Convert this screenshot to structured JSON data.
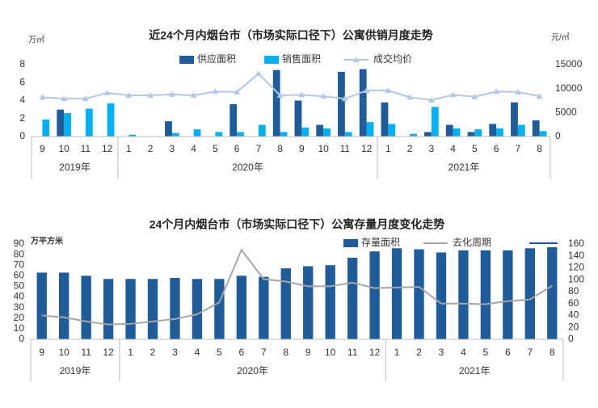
{
  "chart_data": [
    {
      "type": "bar",
      "title": "近24个月内烟台市（市场实际口径下）公寓供销月度走势",
      "y_label": "万㎡",
      "y2_label": "元/㎡",
      "categories": [
        "9",
        "10",
        "11",
        "12",
        "1",
        "2",
        "3",
        "4",
        "5",
        "6",
        "7",
        "8",
        "9",
        "10",
        "11",
        "12",
        "1",
        "2",
        "3",
        "4",
        "5",
        "6",
        "7",
        "8"
      ],
      "groups": [
        "2019年",
        "2020年",
        "2021年"
      ],
      "ylim": [
        0,
        8
      ],
      "yticks": [
        0,
        2,
        4,
        6,
        8
      ],
      "y2lim": [
        0,
        15000
      ],
      "y2ticks": [
        0,
        5000,
        10000,
        15000
      ],
      "grid": false,
      "legend": "top",
      "series": [
        {
          "name": "供应面积",
          "type": "bar",
          "color": "#1f5c99",
          "values": [
            0,
            3.0,
            0,
            0,
            0,
            0,
            1.7,
            0,
            0,
            3.6,
            0,
            7.4,
            4.0,
            1.3,
            7.2,
            7.5,
            3.8,
            0,
            0.5,
            1.3,
            0.5,
            1.4,
            3.8,
            1.8
          ]
        },
        {
          "name": "销售面积",
          "type": "bar",
          "color": "#00b0f0",
          "values": [
            1.9,
            2.6,
            3.1,
            3.7,
            0.2,
            0,
            0.4,
            0.8,
            0.5,
            0.5,
            1.3,
            0.5,
            1.0,
            0.9,
            0.5,
            1.6,
            1.4,
            0.3,
            3.3,
            0.9,
            0.8,
            0.9,
            1.3,
            0.6
          ]
        },
        {
          "name": "成交均价",
          "type": "line",
          "axis": "y2",
          "color": "#b4c7e7",
          "marker": "triangle",
          "values": [
            8200,
            7900,
            7900,
            9100,
            8600,
            8600,
            8800,
            8600,
            9400,
            9300,
            13100,
            8600,
            8700,
            8400,
            7900,
            9600,
            9600,
            8200,
            7600,
            8700,
            8300,
            9400,
            9300,
            8400
          ]
        }
      ]
    },
    {
      "type": "bar",
      "title": "24个月内烟台市（市场实际口径下）公寓存量月度变化走势",
      "y_label": "万平方米",
      "categories": [
        "9",
        "10",
        "11",
        "12",
        "1",
        "2",
        "3",
        "4",
        "5",
        "6",
        "7",
        "8",
        "9",
        "10",
        "11",
        "12",
        "1",
        "2",
        "3",
        "4",
        "5",
        "6",
        "7",
        "8"
      ],
      "groups": [
        "2019年",
        "2020年",
        "2021年"
      ],
      "ylim": [
        0,
        90
      ],
      "yticks": [
        0,
        10,
        20,
        30,
        40,
        50,
        60,
        70,
        80,
        90
      ],
      "y2lim": [
        0,
        160
      ],
      "y2ticks": [
        0,
        20,
        40,
        60,
        80,
        100,
        120,
        140,
        160
      ],
      "grid": false,
      "legend": "top-right",
      "series": [
        {
          "name": "存量面积",
          "type": "bar",
          "color": "#1f5c99",
          "values": [
            63,
            63,
            60,
            57,
            57,
            57,
            58,
            57,
            57,
            60,
            59,
            67,
            69,
            70,
            77,
            83,
            86,
            85,
            82,
            84,
            84,
            84,
            86,
            87
          ]
        },
        {
          "name": "去化周期",
          "type": "line",
          "axis": "y2",
          "color": "#a6a6a6",
          "values": [
            40,
            37,
            30,
            25,
            26,
            30,
            34,
            42,
            62,
            150,
            101,
            97,
            89,
            89,
            95,
            86,
            87,
            88,
            60,
            60,
            59,
            64,
            67,
            90
          ]
        }
      ]
    }
  ]
}
